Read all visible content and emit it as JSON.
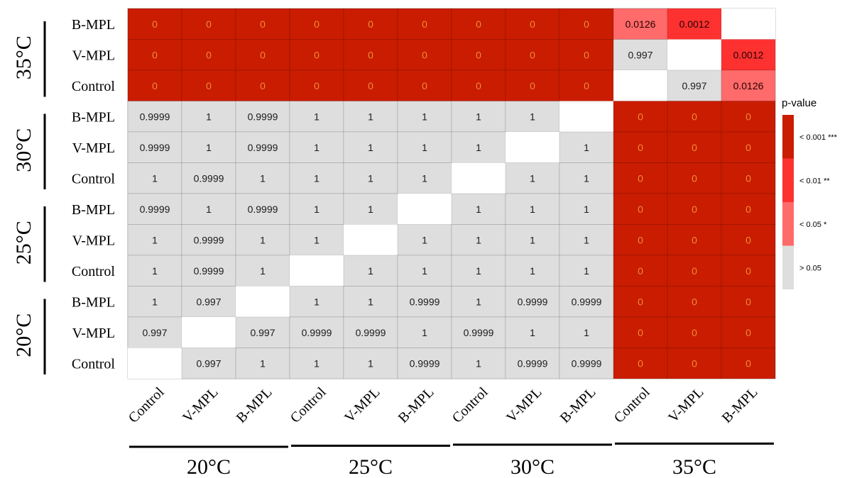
{
  "chart_data": {
    "type": "heatmap",
    "title": "",
    "xlabel": "",
    "ylabel": "",
    "x_categories": [
      "Control",
      "V-MPL",
      "B-MPL",
      "Control",
      "V-MPL",
      "B-MPL",
      "Control",
      "V-MPL",
      "B-MPL",
      "Control",
      "V-MPL",
      "B-MPL"
    ],
    "x_groups": [
      {
        "label": "20°C",
        "span": 3
      },
      {
        "label": "25°C",
        "span": 3
      },
      {
        "label": "30°C",
        "span": 3
      },
      {
        "label": "35°C",
        "span": 3
      }
    ],
    "y_categories": [
      "B-MPL",
      "V-MPL",
      "Control",
      "B-MPL",
      "V-MPL",
      "Control",
      "B-MPL",
      "V-MPL",
      "Control",
      "B-MPL",
      "V-MPL",
      "Control"
    ],
    "y_groups": [
      {
        "label": "35°C",
        "span": 3
      },
      {
        "label": "30°C",
        "span": 3
      },
      {
        "label": "25°C",
        "span": 3
      },
      {
        "label": "20°C",
        "span": 3
      }
    ],
    "values": [
      [
        "0",
        "0",
        "0",
        "0",
        "0",
        "0",
        "0",
        "0",
        "0",
        "0.0126",
        "0.0012",
        null
      ],
      [
        "0",
        "0",
        "0",
        "0",
        "0",
        "0",
        "0",
        "0",
        "0",
        "0.997",
        null,
        "0.0012"
      ],
      [
        "0",
        "0",
        "0",
        "0",
        "0",
        "0",
        "0",
        "0",
        "0",
        null,
        "0.997",
        "0.0126"
      ],
      [
        "0.9999",
        "1",
        "0.9999",
        "1",
        "1",
        "1",
        "1",
        "1",
        null,
        "0",
        "0",
        "0"
      ],
      [
        "0.9999",
        "1",
        "0.9999",
        "1",
        "1",
        "1",
        "1",
        null,
        "1",
        "0",
        "0",
        "0"
      ],
      [
        "1",
        "0.9999",
        "1",
        "1",
        "1",
        "1",
        null,
        "1",
        "1",
        "0",
        "0",
        "0"
      ],
      [
        "0.9999",
        "1",
        "0.9999",
        "1",
        "1",
        null,
        "1",
        "1",
        "1",
        "0",
        "0",
        "0"
      ],
      [
        "1",
        "0.9999",
        "1",
        "1",
        null,
        "1",
        "1",
        "1",
        "1",
        "0",
        "0",
        "0"
      ],
      [
        "1",
        "0.9999",
        "1",
        null,
        "1",
        "1",
        "1",
        "1",
        "1",
        "0",
        "0",
        "0"
      ],
      [
        "1",
        "0.997",
        null,
        "1",
        "1",
        "0.9999",
        "1",
        "0.9999",
        "0.9999",
        "0",
        "0",
        "0"
      ],
      [
        "0.997",
        null,
        "0.997",
        "0.9999",
        "0.9999",
        "1",
        "0.9999",
        "1",
        "1",
        "0",
        "0",
        "0"
      ],
      [
        null,
        "0.997",
        "1",
        "1",
        "1",
        "0.9999",
        "1",
        "0.9999",
        "0.9999",
        "0",
        "0",
        "0"
      ]
    ],
    "legend": {
      "title": "p-value",
      "placement": "right",
      "entries": [
        {
          "label": "< 0.001 ***",
          "color": "#c91c00"
        },
        {
          "label": "< 0.01 **",
          "color": "#fe3131"
        },
        {
          "label": "< 0.05 *",
          "color": "#ff6a6a"
        },
        {
          "label": "> 0.05",
          "color": "#dedede"
        }
      ]
    },
    "colors": {
      "missing": "#ffffff",
      "text": "#1a1a1a"
    }
  }
}
